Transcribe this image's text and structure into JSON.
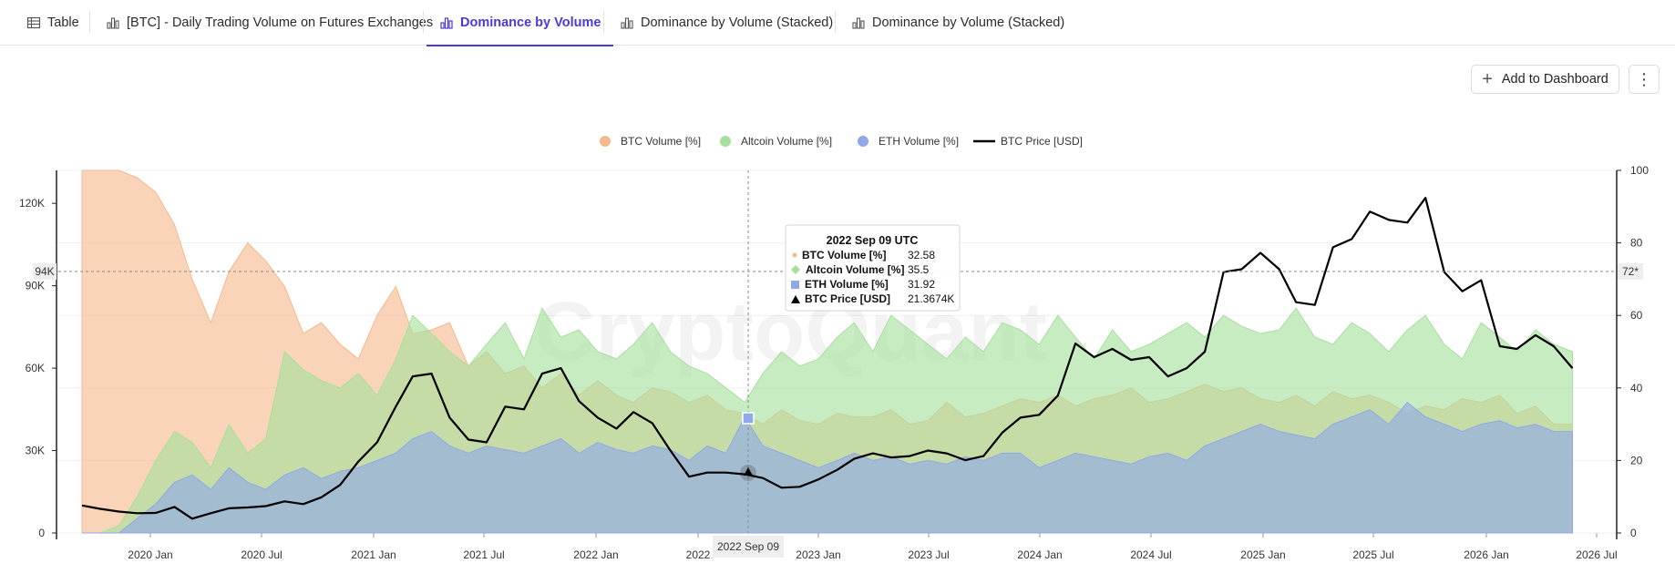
{
  "tabs": [
    {
      "label": "Table",
      "icon": "table-icon",
      "active": false
    },
    {
      "label": "[BTC] - Daily Trading Volume on Futures Exchanges",
      "icon": "bar-chart-icon",
      "active": false
    },
    {
      "label": "Dominance by Volume",
      "icon": "bar-chart-icon",
      "active": true
    },
    {
      "label": "Dominance by Volume (Stacked)",
      "icon": "bar-chart-icon",
      "active": false
    },
    {
      "label": "Dominance by Volume (Stacked)",
      "icon": "bar-chart-icon",
      "active": false
    }
  ],
  "toolbar": {
    "add_label": "Add to Dashboard",
    "more_label": "⋮"
  },
  "colors": {
    "accent": "#4a3ad9",
    "btc": "#f5b98e",
    "altcoin": "#a6e09c",
    "eth": "#8fa8e8",
    "price": "#000000"
  },
  "watermark": "CryptoQuant",
  "chart_data": {
    "type": "area",
    "legend_position": "top-center",
    "legend": [
      "BTC Volume [%]",
      "Altcoin Volume [%]",
      "ETH Volume [%]",
      "BTC Price [USD]"
    ],
    "x_ticks": [
      "2020 Jan",
      "2020 Jul",
      "2021 Jan",
      "2021 Jul",
      "2022 Jan",
      "2022",
      "2023 Jan",
      "2023 Jul",
      "2024 Jan",
      "2024 Jul",
      "2025 Jan",
      "2025 Jul",
      "2026 Jan",
      "2026 Jul"
    ],
    "y_left_ticks": [
      "0",
      "30K",
      "60K",
      "90K",
      "120K"
    ],
    "y_right_ticks": [
      "0",
      "20",
      "40",
      "60",
      "80",
      "100"
    ],
    "y_left_range": [
      0,
      132000
    ],
    "y_right_range": [
      0,
      100
    ],
    "crosshair": {
      "x_label": "2022 Sep 09",
      "left_label": "94K",
      "right_label": "72*"
    },
    "tooltip": {
      "title": "2022 Sep 09 UTC",
      "rows": [
        {
          "label": "BTC Volume [%]",
          "value": "32.58"
        },
        {
          "label": "Altcoin Volume [%]",
          "value": "35.5"
        },
        {
          "label": "ETH Volume [%]",
          "value": "31.92"
        },
        {
          "label": "BTC Price [USD]",
          "value": "21.3674K"
        }
      ]
    },
    "series": [
      {
        "name": "BTC Volume [%]",
        "axis": "right",
        "x": [
          "2019-09-01",
          "2019-10-01",
          "2019-11-01",
          "2019-12-01",
          "2020-01-01",
          "2020-02-01",
          "2020-03-01",
          "2020-04-01",
          "2020-05-01",
          "2020-06-01",
          "2020-07-01",
          "2020-08-01",
          "2020-09-01",
          "2020-10-01",
          "2020-11-01",
          "2020-12-01",
          "2021-01-01",
          "2021-02-01",
          "2021-03-01",
          "2021-04-01",
          "2021-05-01",
          "2021-06-01",
          "2021-07-01",
          "2021-08-01",
          "2021-09-01",
          "2021-10-01",
          "2021-11-01",
          "2021-12-01",
          "2022-01-01",
          "2022-02-01",
          "2022-03-01",
          "2022-04-01",
          "2022-05-01",
          "2022-06-01",
          "2022-07-01",
          "2022-08-01",
          "2022-09-01",
          "2022-10-01",
          "2022-11-01",
          "2022-12-01",
          "2023-01-01",
          "2023-02-01",
          "2023-03-01",
          "2023-04-01",
          "2023-05-01",
          "2023-06-01",
          "2023-07-01",
          "2023-08-01",
          "2023-09-01",
          "2023-10-01",
          "2023-11-01",
          "2023-12-01",
          "2024-01-01",
          "2024-02-01",
          "2024-03-01",
          "2024-04-01",
          "2024-05-01",
          "2024-06-01",
          "2024-07-01",
          "2024-08-01",
          "2024-09-01",
          "2024-10-01",
          "2024-11-01",
          "2024-12-01",
          "2025-01-01",
          "2025-02-01",
          "2025-03-01",
          "2025-04-01",
          "2025-05-01",
          "2025-06-01",
          "2025-07-01",
          "2025-08-01",
          "2025-09-01",
          "2025-10-01",
          "2025-11-01",
          "2025-12-01",
          "2026-01-01",
          "2026-02-01",
          "2026-03-01",
          "2026-04-01",
          "2026-05-01",
          "2026-06-01"
        ],
        "values": [
          100,
          100,
          100,
          98,
          94,
          85,
          70,
          58,
          72,
          80,
          75,
          68,
          55,
          58,
          52,
          48,
          60,
          68,
          55,
          56,
          58,
          46,
          50,
          44,
          46,
          40,
          44,
          38,
          42,
          38,
          36,
          40,
          39,
          36,
          38,
          34,
          33,
          30,
          34,
          31,
          30,
          33,
          32,
          32,
          34,
          30,
          31,
          36,
          32,
          33,
          35,
          37,
          36,
          38,
          35,
          37,
          38,
          40,
          36,
          37,
          39,
          41,
          39,
          40,
          37,
          36,
          38,
          35,
          39,
          37,
          38,
          36,
          33,
          35,
          34,
          37,
          36,
          38,
          33,
          35,
          30,
          30
        ]
      },
      {
        "name": "Altcoin Volume [%]",
        "axis": "right",
        "x": [
          "2019-09-01",
          "2019-10-01",
          "2019-11-01",
          "2019-12-01",
          "2020-01-01",
          "2020-02-01",
          "2020-03-01",
          "2020-04-01",
          "2020-05-01",
          "2020-06-01",
          "2020-07-01",
          "2020-08-01",
          "2020-09-01",
          "2020-10-01",
          "2020-11-01",
          "2020-12-01",
          "2021-01-01",
          "2021-02-01",
          "2021-03-01",
          "2021-04-01",
          "2021-05-01",
          "2021-06-01",
          "2021-07-01",
          "2021-08-01",
          "2021-09-01",
          "2021-10-01",
          "2021-11-01",
          "2021-12-01",
          "2022-01-01",
          "2022-02-01",
          "2022-03-01",
          "2022-04-01",
          "2022-05-01",
          "2022-06-01",
          "2022-07-01",
          "2022-08-01",
          "2022-09-01",
          "2022-10-01",
          "2022-11-01",
          "2022-12-01",
          "2023-01-01",
          "2023-02-01",
          "2023-03-01",
          "2023-04-01",
          "2023-05-01",
          "2023-06-01",
          "2023-07-01",
          "2023-08-01",
          "2023-09-01",
          "2023-10-01",
          "2023-11-01",
          "2023-12-01",
          "2024-01-01",
          "2024-02-01",
          "2024-03-01",
          "2024-04-01",
          "2024-05-01",
          "2024-06-01",
          "2024-07-01",
          "2024-08-01",
          "2024-09-01",
          "2024-10-01",
          "2024-11-01",
          "2024-12-01",
          "2025-01-01",
          "2025-02-01",
          "2025-03-01",
          "2025-04-01",
          "2025-05-01",
          "2025-06-01",
          "2025-07-01",
          "2025-08-01",
          "2025-09-01",
          "2025-10-01",
          "2025-11-01",
          "2025-12-01",
          "2026-01-01",
          "2026-02-01",
          "2026-03-01",
          "2026-04-01",
          "2026-05-01",
          "2026-06-01"
        ],
        "values": [
          0,
          0,
          2,
          10,
          20,
          28,
          25,
          18,
          30,
          22,
          26,
          50,
          45,
          42,
          40,
          44,
          38,
          48,
          60,
          55,
          50,
          46,
          52,
          58,
          48,
          62,
          54,
          56,
          50,
          48,
          52,
          58,
          50,
          46,
          44,
          40,
          36,
          44,
          50,
          46,
          48,
          54,
          58,
          50,
          60,
          56,
          52,
          48,
          54,
          50,
          58,
          56,
          52,
          60,
          54,
          48,
          56,
          50,
          52,
          55,
          58,
          54,
          60,
          57,
          55,
          56,
          62,
          54,
          52,
          58,
          55,
          50,
          56,
          60,
          52,
          48,
          58,
          54,
          50,
          56,
          52,
          50
        ]
      },
      {
        "name": "ETH Volume [%]",
        "axis": "right",
        "x": [
          "2019-09-01",
          "2019-10-01",
          "2019-11-01",
          "2019-12-01",
          "2020-01-01",
          "2020-02-01",
          "2020-03-01",
          "2020-04-01",
          "2020-05-01",
          "2020-06-01",
          "2020-07-01",
          "2020-08-01",
          "2020-09-01",
          "2020-10-01",
          "2020-11-01",
          "2020-12-01",
          "2021-01-01",
          "2021-02-01",
          "2021-03-01",
          "2021-04-01",
          "2021-05-01",
          "2021-06-01",
          "2021-07-01",
          "2021-08-01",
          "2021-09-01",
          "2021-10-01",
          "2021-11-01",
          "2021-12-01",
          "2022-01-01",
          "2022-02-01",
          "2022-03-01",
          "2022-04-01",
          "2022-05-01",
          "2022-06-01",
          "2022-07-01",
          "2022-08-01",
          "2022-09-01",
          "2022-10-01",
          "2022-11-01",
          "2022-12-01",
          "2023-01-01",
          "2023-02-01",
          "2023-03-01",
          "2023-04-01",
          "2023-05-01",
          "2023-06-01",
          "2023-07-01",
          "2023-08-01",
          "2023-09-01",
          "2023-10-01",
          "2023-11-01",
          "2023-12-01",
          "2024-01-01",
          "2024-02-01",
          "2024-03-01",
          "2024-04-01",
          "2024-05-01",
          "2024-06-01",
          "2024-07-01",
          "2024-08-01",
          "2024-09-01",
          "2024-10-01",
          "2024-11-01",
          "2024-12-01",
          "2025-01-01",
          "2025-02-01",
          "2025-03-01",
          "2025-04-01",
          "2025-05-01",
          "2025-06-01",
          "2025-07-01",
          "2025-08-01",
          "2025-09-01",
          "2025-10-01",
          "2025-11-01",
          "2025-12-01",
          "2026-01-01",
          "2026-02-01",
          "2026-03-01",
          "2026-04-01",
          "2026-05-01",
          "2026-06-01"
        ],
        "values": [
          0,
          0,
          0,
          4,
          8,
          14,
          16,
          12,
          18,
          14,
          12,
          16,
          18,
          15,
          17,
          18,
          20,
          22,
          26,
          28,
          24,
          22,
          24,
          23,
          22,
          24,
          26,
          22,
          25,
          23,
          22,
          24,
          23,
          20,
          24,
          22,
          32,
          24,
          22,
          20,
          18,
          20,
          22,
          20,
          21,
          19,
          20,
          19,
          21,
          20,
          22,
          22,
          18,
          20,
          22,
          21,
          20,
          19,
          21,
          22,
          20,
          24,
          26,
          28,
          30,
          28,
          27,
          26,
          30,
          32,
          34,
          30,
          36,
          32,
          30,
          28,
          30,
          31,
          29,
          30,
          28,
          28
        ]
      },
      {
        "name": "BTC Price [USD]",
        "axis": "left",
        "x": [
          "2019-09-01",
          "2019-10-01",
          "2019-11-01",
          "2019-12-01",
          "2020-01-01",
          "2020-02-01",
          "2020-03-01",
          "2020-04-01",
          "2020-05-01",
          "2020-06-01",
          "2020-07-01",
          "2020-08-01",
          "2020-09-01",
          "2020-10-01",
          "2020-11-01",
          "2020-12-01",
          "2021-01-01",
          "2021-02-01",
          "2021-03-01",
          "2021-04-01",
          "2021-05-01",
          "2021-06-01",
          "2021-07-01",
          "2021-08-01",
          "2021-09-01",
          "2021-10-01",
          "2021-11-01",
          "2021-12-01",
          "2022-01-01",
          "2022-02-01",
          "2022-03-01",
          "2022-04-01",
          "2022-05-01",
          "2022-06-01",
          "2022-07-01",
          "2022-08-01",
          "2022-09-01",
          "2022-10-01",
          "2022-11-01",
          "2022-12-01",
          "2023-01-01",
          "2023-02-01",
          "2023-03-01",
          "2023-04-01",
          "2023-05-01",
          "2023-06-01",
          "2023-07-01",
          "2023-08-01",
          "2023-09-01",
          "2023-10-01",
          "2023-11-01",
          "2023-12-01",
          "2024-01-01",
          "2024-02-01",
          "2024-03-01",
          "2024-04-01",
          "2024-05-01",
          "2024-06-01",
          "2024-07-01",
          "2024-08-01",
          "2024-09-01",
          "2024-10-01",
          "2024-11-01",
          "2024-12-01",
          "2025-01-01",
          "2025-02-01",
          "2025-03-01",
          "2025-04-01",
          "2025-05-01",
          "2025-06-01",
          "2025-07-01",
          "2025-08-01",
          "2025-09-01",
          "2025-10-01",
          "2025-11-01",
          "2025-12-01",
          "2026-01-01",
          "2026-02-01",
          "2026-03-01",
          "2026-04-01",
          "2026-05-01",
          "2026-06-01"
        ],
        "values": [
          10000,
          8800,
          7800,
          7200,
          7300,
          9500,
          5200,
          7200,
          9000,
          9300,
          9800,
          11500,
          10500,
          13000,
          17500,
          26000,
          33000,
          46000,
          57000,
          58000,
          42000,
          34000,
          33000,
          46000,
          45000,
          58000,
          60000,
          48000,
          42000,
          38000,
          44000,
          40000,
          30000,
          20500,
          22000,
          22000,
          21367,
          20000,
          16500,
          16800,
          19500,
          23000,
          27000,
          29000,
          27500,
          28000,
          30000,
          29000,
          26500,
          28000,
          36500,
          42000,
          43000,
          50000,
          69000,
          64000,
          67000,
          63000,
          64000,
          57000,
          60000,
          66000,
          95000,
          96000,
          102000,
          96000,
          84000,
          83000,
          104000,
          107000,
          117000,
          114000,
          113000,
          122000,
          95000,
          88000,
          92000,
          68000,
          67000,
          72000,
          68000,
          60000
        ]
      }
    ]
  }
}
